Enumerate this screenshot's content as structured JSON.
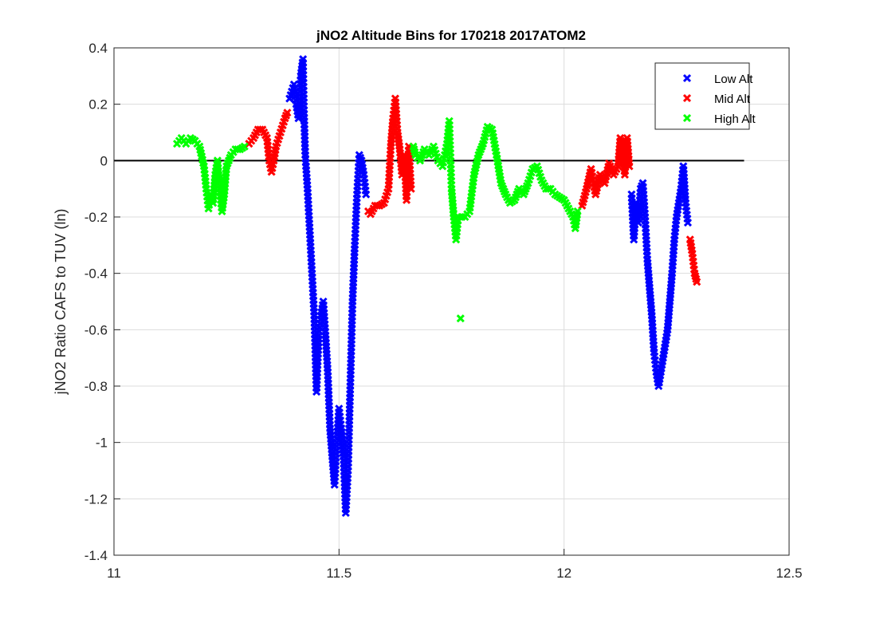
{
  "chart_data": {
    "type": "scatter",
    "title": "jNO2 Altitude Bins for 170218 2017ATOM2",
    "xlabel": "",
    "ylabel": "jNO2 Ratio CAFS to TUV (ln)",
    "xlim": [
      11,
      12.5
    ],
    "ylim": [
      -1.4,
      0.4
    ],
    "xticks": [
      "11",
      "11.5",
      "12",
      "12.5"
    ],
    "yticks": [
      "0.4",
      "0.2",
      "0",
      "-0.2",
      "-0.4",
      "-0.6",
      "-0.8",
      "-1",
      "-1.2",
      "-1.4"
    ],
    "grid": true,
    "legend_position": "top-right",
    "reference_line": {
      "y": 0,
      "x_range": [
        11,
        12.4
      ],
      "color": "#000000"
    },
    "series": [
      {
        "name": "Low Alt",
        "color": "#0000FF",
        "segments": [
          [
            [
              11.39,
              0.22
            ],
            [
              11.4,
              0.27
            ],
            [
              11.405,
              0.2
            ],
            [
              11.41,
              0.15
            ],
            [
              11.415,
              0.3
            ],
            [
              11.42,
              0.36
            ],
            [
              11.422,
              0.18
            ],
            [
              11.425,
              0.02
            ],
            [
              11.43,
              -0.1
            ],
            [
              11.435,
              -0.25
            ],
            [
              11.44,
              -0.4
            ],
            [
              11.445,
              -0.55
            ],
            [
              11.45,
              -0.82
            ],
            [
              11.455,
              -0.62
            ],
            [
              11.46,
              -0.55
            ],
            [
              11.465,
              -0.5
            ],
            [
              11.47,
              -0.62
            ],
            [
              11.475,
              -0.75
            ],
            [
              11.48,
              -0.95
            ],
            [
              11.485,
              -1.05
            ],
            [
              11.49,
              -1.15
            ],
            [
              11.495,
              -1.0
            ],
            [
              11.5,
              -0.88
            ],
            [
              11.505,
              -0.95
            ],
            [
              11.51,
              -1.05
            ],
            [
              11.515,
              -1.25
            ],
            [
              11.52,
              -1.1
            ],
            [
              11.525,
              -0.8
            ],
            [
              11.53,
              -0.5
            ],
            [
              11.535,
              -0.3
            ],
            [
              11.54,
              -0.12
            ],
            [
              11.545,
              0.02
            ],
            [
              11.55,
              0.0
            ],
            [
              11.555,
              -0.05
            ],
            [
              11.56,
              -0.12
            ]
          ],
          [
            [
              12.15,
              -0.12
            ],
            [
              12.155,
              -0.28
            ],
            [
              12.16,
              -0.15
            ],
            [
              12.165,
              -0.22
            ],
            [
              12.17,
              -0.1
            ],
            [
              12.175,
              -0.08
            ],
            [
              12.18,
              -0.2
            ],
            [
              12.185,
              -0.35
            ],
            [
              12.19,
              -0.45
            ],
            [
              12.195,
              -0.55
            ],
            [
              12.2,
              -0.68
            ],
            [
              12.205,
              -0.75
            ],
            [
              12.21,
              -0.8
            ],
            [
              12.215,
              -0.75
            ],
            [
              12.22,
              -0.7
            ],
            [
              12.225,
              -0.65
            ],
            [
              12.23,
              -0.6
            ],
            [
              12.235,
              -0.5
            ],
            [
              12.24,
              -0.4
            ],
            [
              12.245,
              -0.28
            ],
            [
              12.25,
              -0.2
            ],
            [
              12.255,
              -0.15
            ],
            [
              12.26,
              -0.1
            ],
            [
              12.265,
              -0.02
            ],
            [
              12.27,
              -0.15
            ],
            [
              12.275,
              -0.22
            ]
          ]
        ]
      },
      {
        "name": "Mid Alt",
        "color": "#FF0000",
        "segments": [
          [
            [
              11.3,
              0.06
            ],
            [
              11.31,
              0.08
            ],
            [
              11.32,
              0.11
            ],
            [
              11.33,
              0.11
            ],
            [
              11.34,
              0.08
            ],
            [
              11.345,
              0.0
            ],
            [
              11.35,
              -0.04
            ],
            [
              11.355,
              0.0
            ],
            [
              11.36,
              0.05
            ],
            [
              11.37,
              0.1
            ],
            [
              11.38,
              0.15
            ],
            [
              11.385,
              0.17
            ]
          ],
          [
            [
              11.565,
              -0.18
            ],
            [
              11.57,
              -0.19
            ],
            [
              11.58,
              -0.16
            ],
            [
              11.59,
              -0.16
            ],
            [
              11.6,
              -0.15
            ],
            [
              11.61,
              -0.1
            ],
            [
              11.615,
              0.05
            ],
            [
              11.62,
              0.15
            ],
            [
              11.625,
              0.22
            ],
            [
              11.63,
              0.1
            ],
            [
              11.635,
              0.04
            ],
            [
              11.64,
              -0.05
            ],
            [
              11.645,
              0.02
            ],
            [
              11.65,
              -0.14
            ],
            [
              11.655,
              0.05
            ],
            [
              11.66,
              -0.1
            ]
          ],
          [
            [
              12.04,
              -0.16
            ],
            [
              12.05,
              -0.1
            ],
            [
              12.06,
              -0.03
            ],
            [
              12.07,
              -0.12
            ],
            [
              12.08,
              -0.05
            ],
            [
              12.09,
              -0.08
            ],
            [
              12.1,
              -0.01
            ],
            [
              12.11,
              -0.05
            ],
            [
              12.12,
              -0.02
            ],
            [
              12.125,
              0.08
            ],
            [
              12.13,
              0.05
            ],
            [
              12.135,
              -0.05
            ],
            [
              12.14,
              0.08
            ],
            [
              12.145,
              -0.02
            ]
          ],
          [
            [
              12.28,
              -0.28
            ],
            [
              12.285,
              -0.33
            ],
            [
              12.29,
              -0.4
            ],
            [
              12.295,
              -0.43
            ]
          ]
        ]
      },
      {
        "name": "High Alt",
        "color": "#00FF00",
        "segments": [
          [
            [
              11.14,
              0.06
            ],
            [
              11.15,
              0.08
            ],
            [
              11.16,
              0.06
            ],
            [
              11.17,
              0.08
            ],
            [
              11.18,
              0.07
            ],
            [
              11.19,
              0.05
            ],
            [
              11.2,
              -0.02
            ],
            [
              11.205,
              -0.1
            ],
            [
              11.21,
              -0.17
            ],
            [
              11.215,
              -0.12
            ],
            [
              11.22,
              -0.15
            ],
            [
              11.225,
              -0.05
            ],
            [
              11.23,
              0.0
            ],
            [
              11.235,
              -0.1
            ],
            [
              11.24,
              -0.18
            ],
            [
              11.245,
              -0.12
            ],
            [
              11.25,
              -0.02
            ],
            [
              11.26,
              0.02
            ],
            [
              11.27,
              0.04
            ],
            [
              11.28,
              0.04
            ],
            [
              11.29,
              0.05
            ]
          ],
          [
            [
              11.665,
              0.05
            ],
            [
              11.67,
              0.02
            ],
            [
              11.68,
              0.0
            ],
            [
              11.69,
              0.04
            ],
            [
              11.7,
              0.02
            ],
            [
              11.71,
              0.05
            ],
            [
              11.72,
              0.0
            ],
            [
              11.73,
              -0.02
            ],
            [
              11.74,
              0.06
            ],
            [
              11.745,
              0.14
            ],
            [
              11.75,
              -0.1
            ],
            [
              11.755,
              -0.2
            ],
            [
              11.76,
              -0.28
            ],
            [
              11.765,
              -0.2
            ],
            [
              11.78,
              -0.2
            ],
            [
              11.79,
              -0.18
            ],
            [
              11.8,
              -0.05
            ],
            [
              11.81,
              0.02
            ],
            [
              11.82,
              0.06
            ],
            [
              11.83,
              0.12
            ],
            [
              11.84,
              0.11
            ],
            [
              11.85,
              0.02
            ],
            [
              11.86,
              -0.08
            ],
            [
              11.87,
              -0.12
            ],
            [
              11.88,
              -0.15
            ],
            [
              11.89,
              -0.14
            ],
            [
              11.9,
              -0.1
            ],
            [
              11.91,
              -0.12
            ],
            [
              11.92,
              -0.08
            ],
            [
              11.93,
              -0.03
            ],
            [
              11.94,
              -0.02
            ],
            [
              11.95,
              -0.07
            ],
            [
              11.96,
              -0.1
            ],
            [
              11.97,
              -0.1
            ],
            [
              11.98,
              -0.12
            ],
            [
              11.99,
              -0.13
            ],
            [
              12.0,
              -0.14
            ],
            [
              12.01,
              -0.17
            ],
            [
              12.02,
              -0.2
            ],
            [
              12.025,
              -0.24
            ],
            [
              12.03,
              -0.18
            ]
          ],
          [
            [
              11.77,
              -0.56
            ]
          ]
        ]
      }
    ]
  }
}
